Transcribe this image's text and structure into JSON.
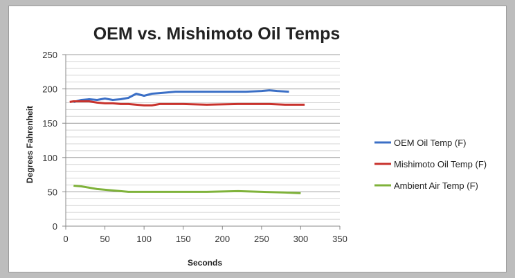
{
  "chart_data": {
    "type": "line",
    "title": "OEM vs. Mishimoto Oil Temps",
    "xlabel": "Seconds",
    "ylabel": "Degrees Fahrenheit",
    "xlim": [
      0,
      350
    ],
    "ylim": [
      0,
      250
    ],
    "x_ticks": [
      "0",
      "50",
      "100",
      "150",
      "200",
      "250",
      "300",
      "350"
    ],
    "y_ticks": [
      "0",
      "50",
      "100",
      "150",
      "200",
      "250"
    ],
    "x_tick_values": [
      0,
      50,
      100,
      150,
      200,
      250,
      300,
      350
    ],
    "y_tick_values": [
      0,
      50,
      100,
      150,
      200,
      250
    ],
    "grid": true,
    "minor_grid_step": 10,
    "legend_position": "right",
    "series": [
      {
        "name": "OEM Oil Temp (F)",
        "color": "#3b6fc6",
        "points": [
          [
            10,
            181
          ],
          [
            20,
            184
          ],
          [
            30,
            185
          ],
          [
            40,
            184
          ],
          [
            50,
            186
          ],
          [
            60,
            184
          ],
          [
            70,
            185
          ],
          [
            80,
            187
          ],
          [
            90,
            193
          ],
          [
            100,
            190
          ],
          [
            110,
            193
          ],
          [
            120,
            194
          ],
          [
            130,
            195
          ],
          [
            140,
            196
          ],
          [
            150,
            196
          ],
          [
            170,
            196
          ],
          [
            200,
            196
          ],
          [
            230,
            196
          ],
          [
            250,
            197
          ],
          [
            260,
            198
          ],
          [
            270,
            197
          ],
          [
            285,
            196
          ]
        ]
      },
      {
        "name": "Mishimoto Oil Temp (F)",
        "color": "#c8322c",
        "points": [
          [
            5,
            181
          ],
          [
            10,
            182
          ],
          [
            20,
            182
          ],
          [
            30,
            182
          ],
          [
            40,
            180
          ],
          [
            50,
            179
          ],
          [
            60,
            179
          ],
          [
            70,
            178
          ],
          [
            80,
            178
          ],
          [
            90,
            177
          ],
          [
            100,
            176
          ],
          [
            110,
            176
          ],
          [
            120,
            178
          ],
          [
            150,
            178
          ],
          [
            180,
            177
          ],
          [
            220,
            178
          ],
          [
            260,
            178
          ],
          [
            280,
            177
          ],
          [
            305,
            177
          ]
        ]
      },
      {
        "name": "Ambient Air Temp (F)",
        "color": "#7fb23a",
        "points": [
          [
            10,
            59
          ],
          [
            20,
            58
          ],
          [
            30,
            56
          ],
          [
            40,
            54
          ],
          [
            50,
            53
          ],
          [
            60,
            52
          ],
          [
            70,
            51
          ],
          [
            80,
            50
          ],
          [
            100,
            50
          ],
          [
            130,
            50
          ],
          [
            150,
            50
          ],
          [
            180,
            50
          ],
          [
            220,
            51
          ],
          [
            250,
            50
          ],
          [
            280,
            49
          ],
          [
            300,
            48
          ]
        ]
      }
    ]
  }
}
